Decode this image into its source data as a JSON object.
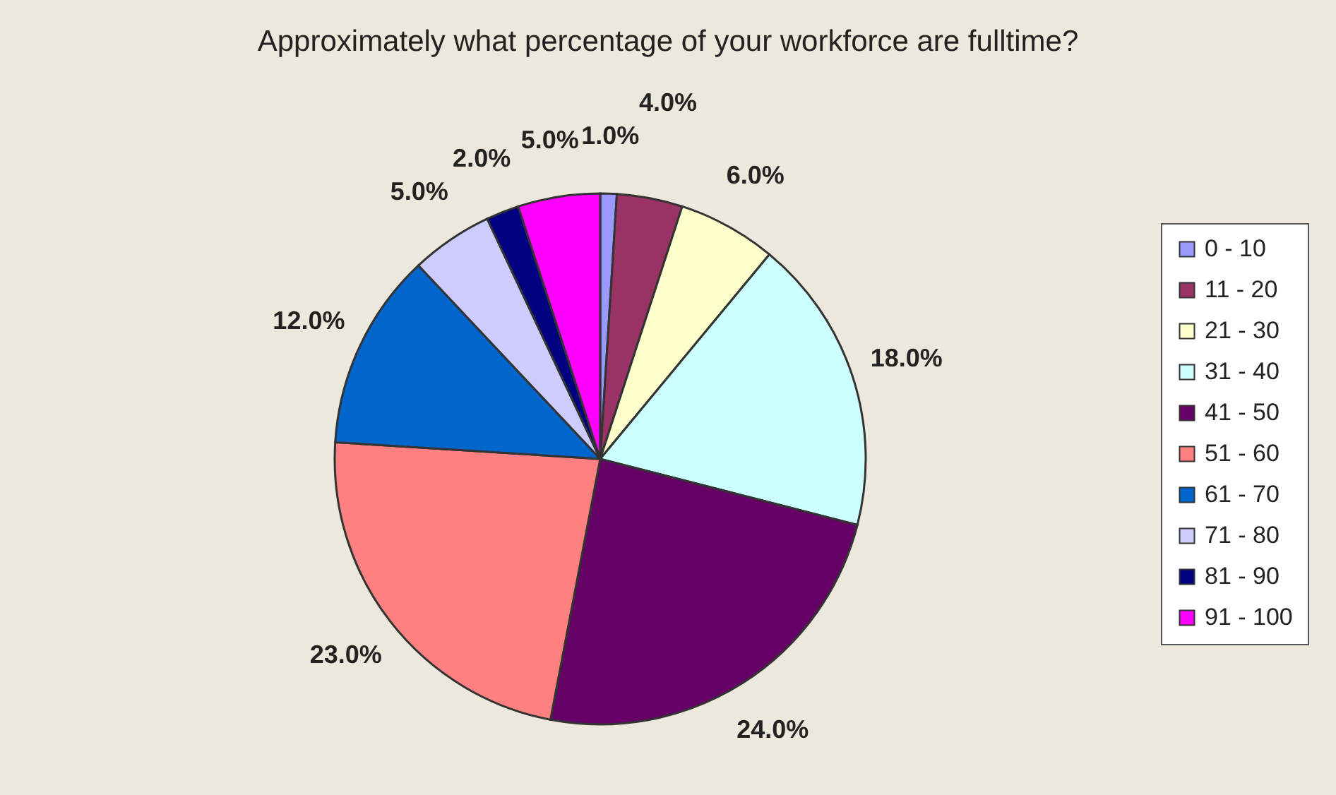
{
  "chart_data": {
    "type": "pie",
    "title": "Approximately what percentage of your workforce are fulltime?",
    "categories": [
      "0 - 10",
      "11 - 20",
      "21 - 30",
      "31 - 40",
      "41 - 50",
      "51 - 60",
      "61 - 70",
      "71 - 80",
      "81 - 90",
      "91 - 100"
    ],
    "values": [
      1,
      4,
      6,
      18,
      24,
      23,
      12,
      5,
      2,
      5
    ],
    "value_labels": [
      "1.0%",
      "4.0%",
      "6.0%",
      "18.0%",
      "24.0%",
      "23.0%",
      "12.0%",
      "5.0%",
      "2.0%",
      "5.0%"
    ],
    "colors": [
      "#9999ff",
      "#993366",
      "#ffffcc",
      "#ccffff",
      "#660066",
      "#ff8080",
      "#0066cc",
      "#ccccff",
      "#000080",
      "#ff00ff"
    ],
    "legend": "right"
  }
}
